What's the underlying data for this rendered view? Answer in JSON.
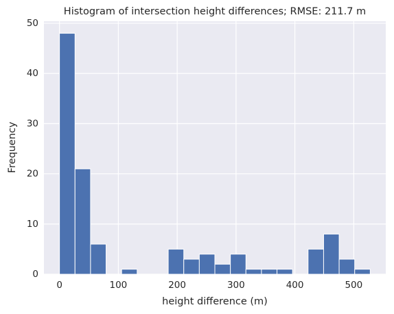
{
  "chart_data": {
    "type": "histogram",
    "title": "Histogram of intersection height differences; RMSE: 211.7 m",
    "x_label": "height difference (m)",
    "y_label": "Frequency",
    "bins": [
      0,
      26.4,
      52.8,
      79.2,
      105.6,
      132,
      158.4,
      184.8,
      211.2,
      237.6,
      264,
      290.4,
      316.8,
      343.2,
      369.6,
      396,
      422.4,
      448.8,
      475.2,
      501.6,
      528
    ],
    "values": [
      48,
      21,
      6,
      0,
      1,
      0,
      0,
      5,
      3,
      4,
      2,
      4,
      1,
      1,
      1,
      0,
      5,
      8,
      3,
      1
    ],
    "color": "#4c72b0",
    "xlim": [
      -26.4,
      554.4
    ],
    "ylim": [
      0,
      50.4
    ],
    "xticks": [
      0,
      100,
      200,
      300,
      400,
      500
    ],
    "yticks": [
      0,
      10,
      20,
      30,
      40,
      50
    ],
    "grid": true
  }
}
